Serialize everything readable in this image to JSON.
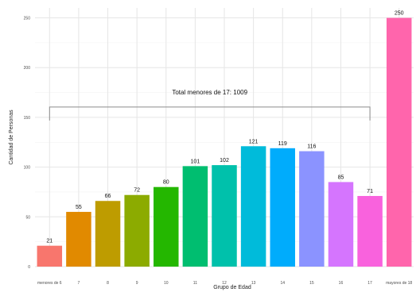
{
  "chart_data": {
    "type": "bar",
    "categories": [
      "menores de 6",
      "7",
      "8",
      "9",
      "10",
      "11",
      "12",
      "13",
      "14",
      "15",
      "16",
      "17",
      "mayores de 18"
    ],
    "values": [
      21,
      55,
      66,
      72,
      80,
      101,
      102,
      121,
      119,
      116,
      85,
      71,
      250
    ],
    "colors": [
      "#F8766D",
      "#E18A00",
      "#BE9C00",
      "#8CAB00",
      "#24B700",
      "#00BE70",
      "#00C1AB",
      "#00BBDA",
      "#00ACFC",
      "#8B93FF",
      "#D575FE",
      "#F962DD",
      "#FF65AC"
    ],
    "title": "",
    "xlabel": "Grupo de Edad",
    "ylabel": "Cantidad de Personas",
    "ylim": [
      0,
      260
    ],
    "yticks": [
      0,
      50,
      100,
      150,
      200,
      250
    ],
    "grid": true,
    "legend": "none",
    "annotation": {
      "text": "Total menores de 17: 1009",
      "from_category": "menores de 6",
      "to_category": "17"
    }
  }
}
